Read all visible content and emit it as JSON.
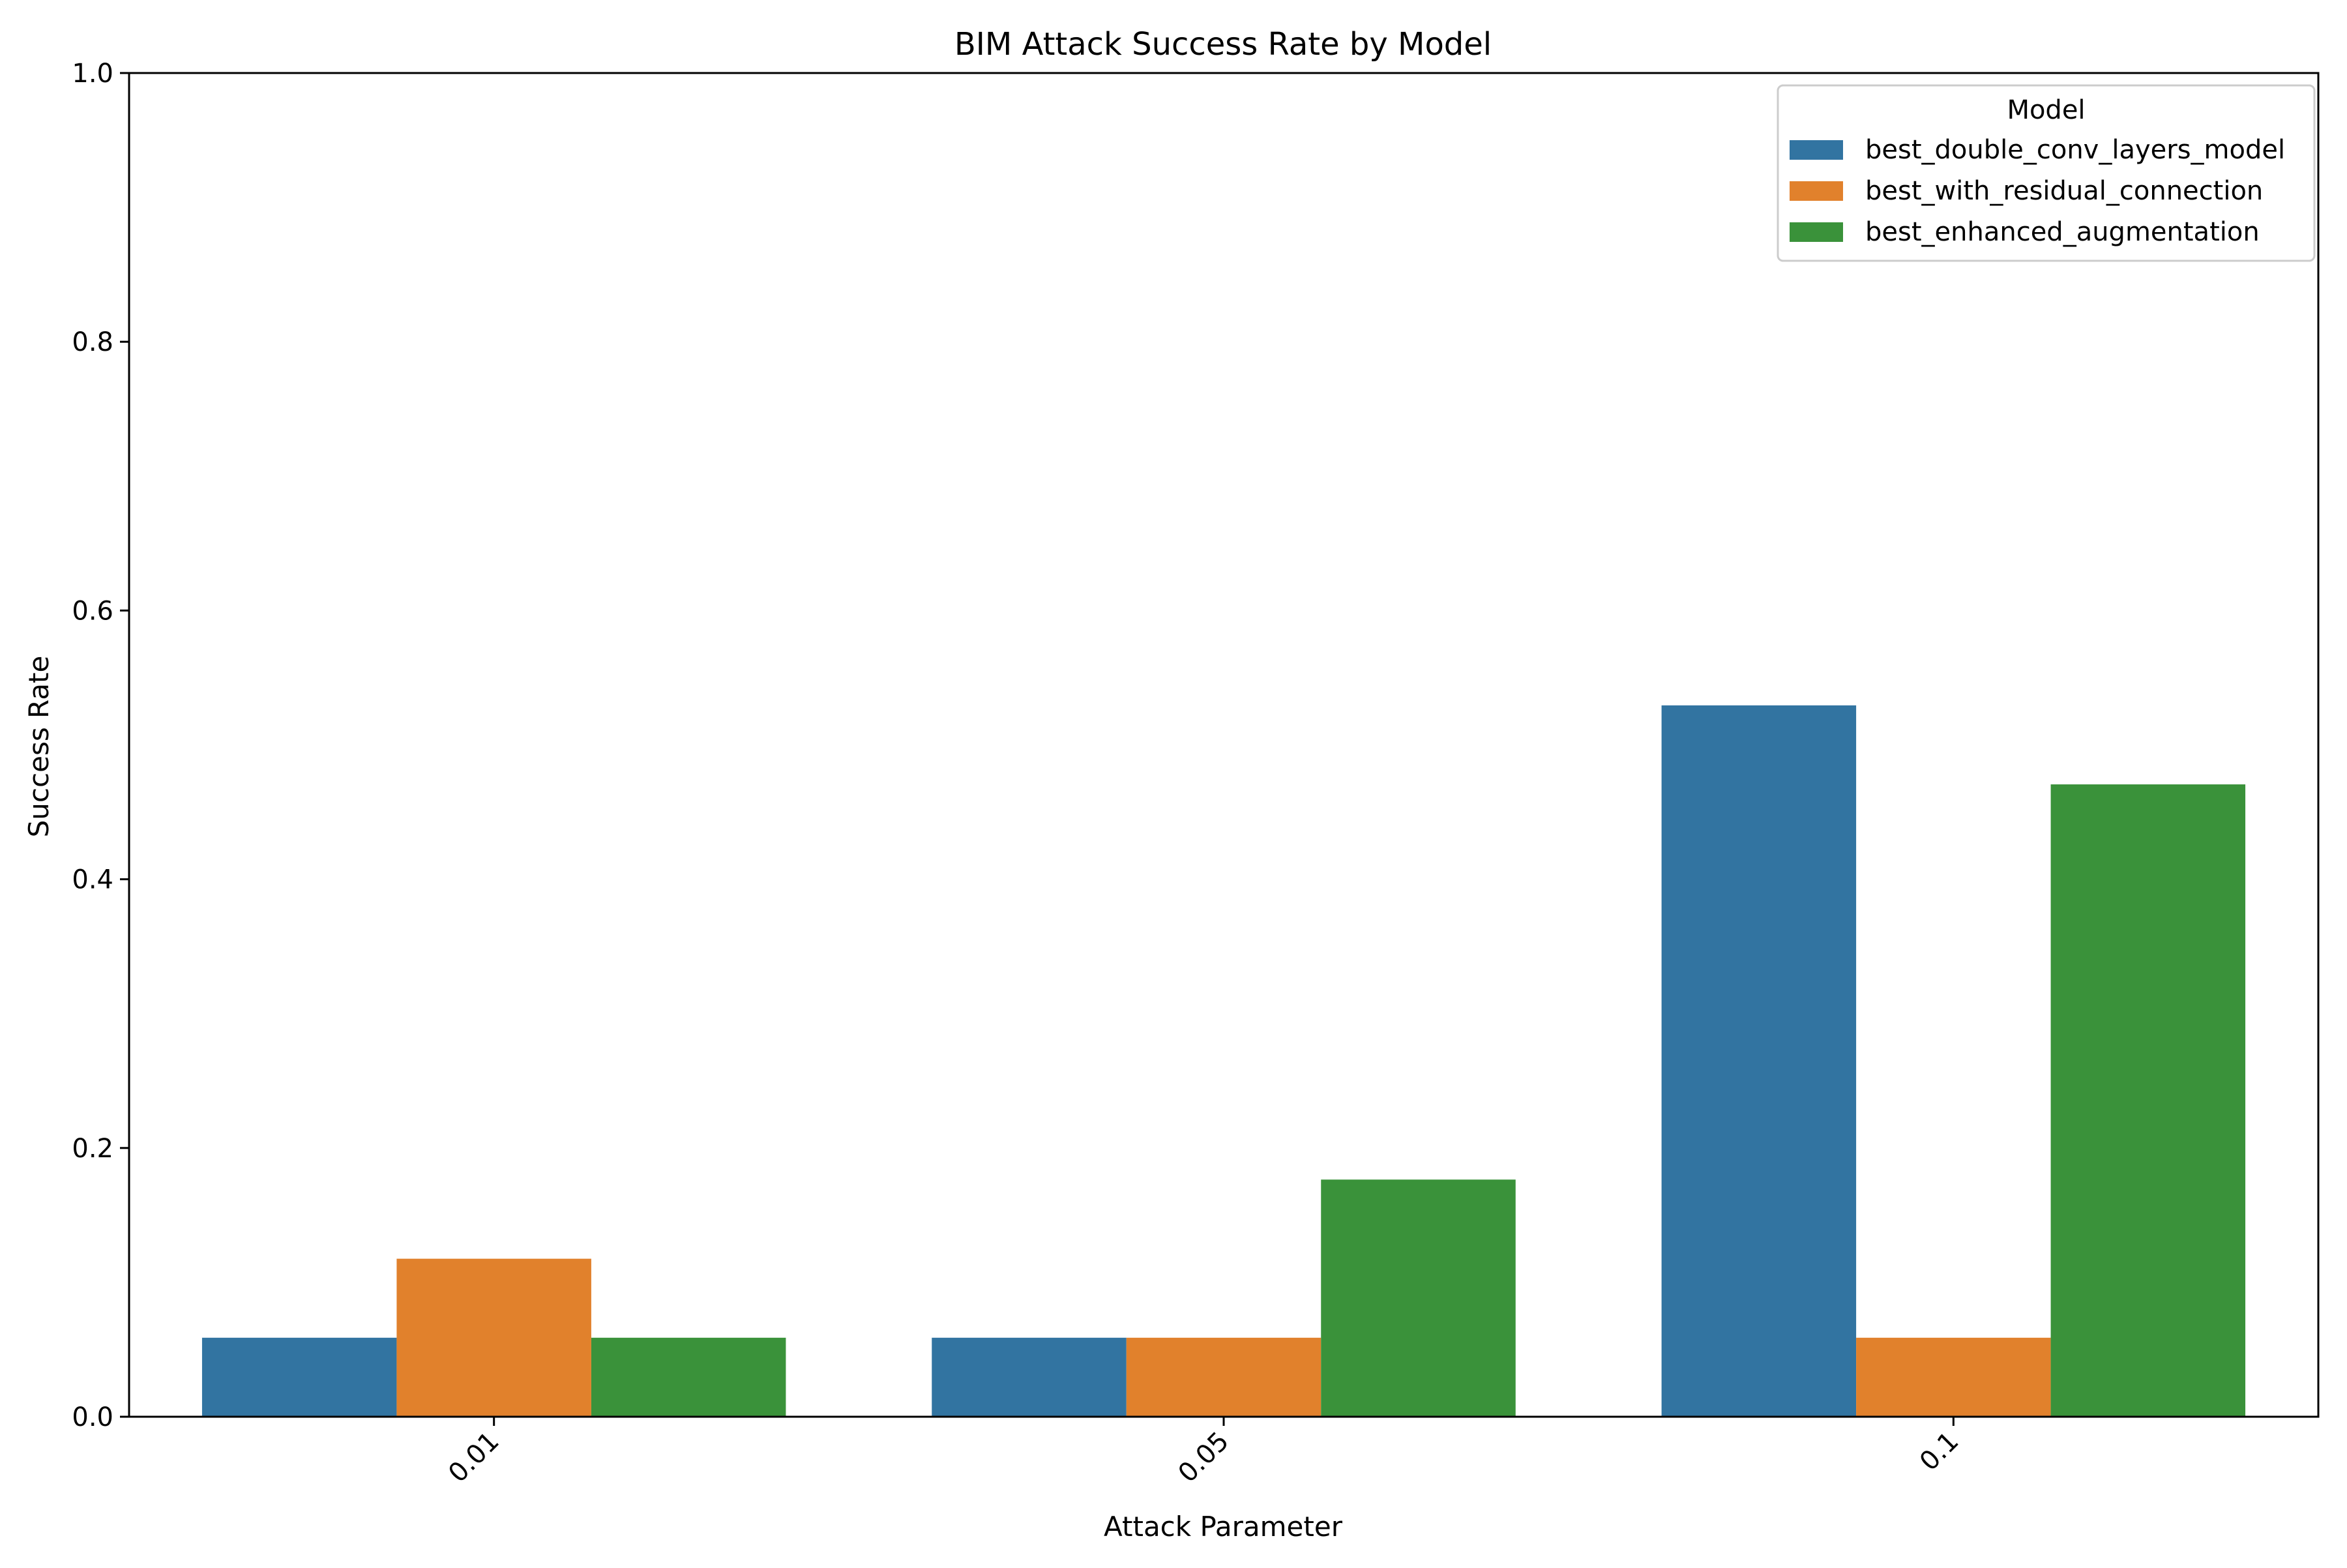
{
  "chart_data": {
    "type": "bar",
    "title": "BIM Attack Success Rate by Model",
    "xlabel": "Attack Parameter",
    "ylabel": "Success Rate",
    "categories": [
      "0.01",
      "0.05",
      "0.1"
    ],
    "ylim": [
      0,
      1.0
    ],
    "yticks": [
      0.0,
      0.2,
      0.4,
      0.6,
      0.8,
      1.0
    ],
    "ytick_labels": [
      "0.0",
      "0.2",
      "0.4",
      "0.6",
      "0.8",
      "1.0"
    ],
    "grid": false,
    "legend": {
      "title": "Model",
      "placement": "top-right"
    },
    "series": [
      {
        "name": "best_double_conv_layers_model",
        "color": "#3274a1",
        "values": [
          0.0588,
          0.0588,
          0.5294
        ]
      },
      {
        "name": "best_with_residual_connection",
        "color": "#e1812c",
        "values": [
          0.1176,
          0.0588,
          0.0588
        ]
      },
      {
        "name": "best_enhanced_augmentation",
        "color": "#3a923a",
        "values": [
          0.0588,
          0.1765,
          0.4706
        ]
      }
    ]
  }
}
